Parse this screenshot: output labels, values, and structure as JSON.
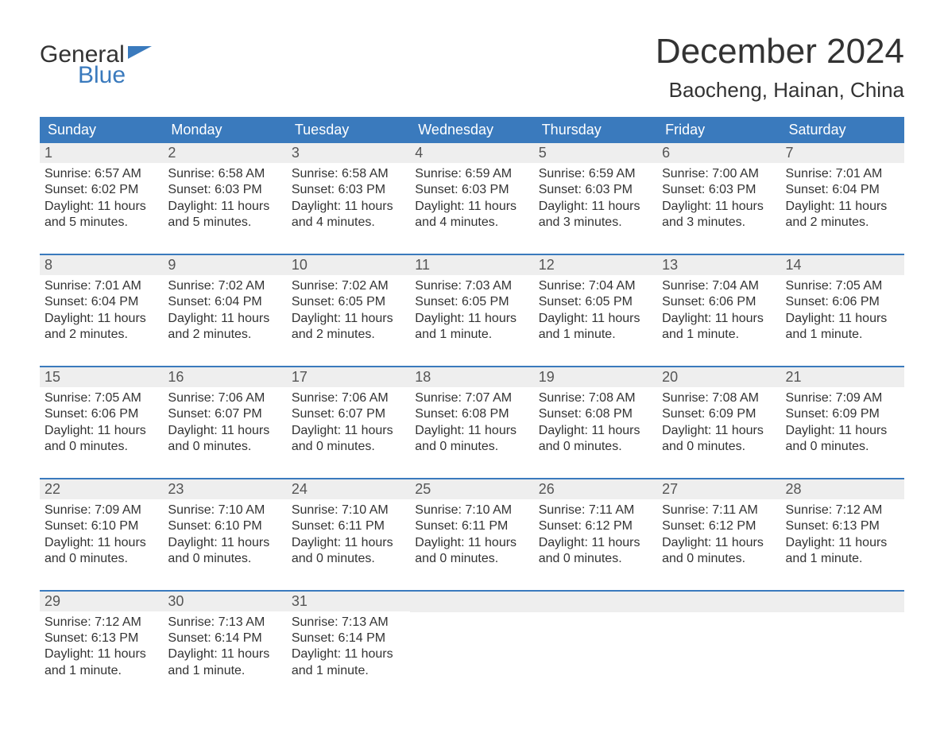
{
  "colors": {
    "brand_blue": "#3a7abd",
    "header_bg": "#3a7abd",
    "header_text": "#ffffff",
    "daynum_bg": "#eeeeee",
    "daynum_text": "#555555",
    "body_text": "#333333",
    "page_bg": "#ffffff",
    "week_divider": "#3a7abd"
  },
  "typography": {
    "title_fontsize_pt": 33,
    "location_fontsize_pt": 20,
    "dow_fontsize_pt": 14,
    "daynum_fontsize_pt": 14,
    "body_fontsize_pt": 12,
    "font_family": "Arial"
  },
  "logo": {
    "word1": "General",
    "word2": "Blue"
  },
  "title": "December 2024",
  "location": "Baocheng, Hainan, China",
  "daysOfWeek": [
    "Sunday",
    "Monday",
    "Tuesday",
    "Wednesday",
    "Thursday",
    "Friday",
    "Saturday"
  ],
  "weeks": [
    [
      {
        "n": "1",
        "sr": "Sunrise: 6:57 AM",
        "ss": "Sunset: 6:02 PM",
        "d1": "Daylight: 11 hours",
        "d2": "and 5 minutes."
      },
      {
        "n": "2",
        "sr": "Sunrise: 6:58 AM",
        "ss": "Sunset: 6:03 PM",
        "d1": "Daylight: 11 hours",
        "d2": "and 5 minutes."
      },
      {
        "n": "3",
        "sr": "Sunrise: 6:58 AM",
        "ss": "Sunset: 6:03 PM",
        "d1": "Daylight: 11 hours",
        "d2": "and 4 minutes."
      },
      {
        "n": "4",
        "sr": "Sunrise: 6:59 AM",
        "ss": "Sunset: 6:03 PM",
        "d1": "Daylight: 11 hours",
        "d2": "and 4 minutes."
      },
      {
        "n": "5",
        "sr": "Sunrise: 6:59 AM",
        "ss": "Sunset: 6:03 PM",
        "d1": "Daylight: 11 hours",
        "d2": "and 3 minutes."
      },
      {
        "n": "6",
        "sr": "Sunrise: 7:00 AM",
        "ss": "Sunset: 6:03 PM",
        "d1": "Daylight: 11 hours",
        "d2": "and 3 minutes."
      },
      {
        "n": "7",
        "sr": "Sunrise: 7:01 AM",
        "ss": "Sunset: 6:04 PM",
        "d1": "Daylight: 11 hours",
        "d2": "and 2 minutes."
      }
    ],
    [
      {
        "n": "8",
        "sr": "Sunrise: 7:01 AM",
        "ss": "Sunset: 6:04 PM",
        "d1": "Daylight: 11 hours",
        "d2": "and 2 minutes."
      },
      {
        "n": "9",
        "sr": "Sunrise: 7:02 AM",
        "ss": "Sunset: 6:04 PM",
        "d1": "Daylight: 11 hours",
        "d2": "and 2 minutes."
      },
      {
        "n": "10",
        "sr": "Sunrise: 7:02 AM",
        "ss": "Sunset: 6:05 PM",
        "d1": "Daylight: 11 hours",
        "d2": "and 2 minutes."
      },
      {
        "n": "11",
        "sr": "Sunrise: 7:03 AM",
        "ss": "Sunset: 6:05 PM",
        "d1": "Daylight: 11 hours",
        "d2": "and 1 minute."
      },
      {
        "n": "12",
        "sr": "Sunrise: 7:04 AM",
        "ss": "Sunset: 6:05 PM",
        "d1": "Daylight: 11 hours",
        "d2": "and 1 minute."
      },
      {
        "n": "13",
        "sr": "Sunrise: 7:04 AM",
        "ss": "Sunset: 6:06 PM",
        "d1": "Daylight: 11 hours",
        "d2": "and 1 minute."
      },
      {
        "n": "14",
        "sr": "Sunrise: 7:05 AM",
        "ss": "Sunset: 6:06 PM",
        "d1": "Daylight: 11 hours",
        "d2": "and 1 minute."
      }
    ],
    [
      {
        "n": "15",
        "sr": "Sunrise: 7:05 AM",
        "ss": "Sunset: 6:06 PM",
        "d1": "Daylight: 11 hours",
        "d2": "and 0 minutes."
      },
      {
        "n": "16",
        "sr": "Sunrise: 7:06 AM",
        "ss": "Sunset: 6:07 PM",
        "d1": "Daylight: 11 hours",
        "d2": "and 0 minutes."
      },
      {
        "n": "17",
        "sr": "Sunrise: 7:06 AM",
        "ss": "Sunset: 6:07 PM",
        "d1": "Daylight: 11 hours",
        "d2": "and 0 minutes."
      },
      {
        "n": "18",
        "sr": "Sunrise: 7:07 AM",
        "ss": "Sunset: 6:08 PM",
        "d1": "Daylight: 11 hours",
        "d2": "and 0 minutes."
      },
      {
        "n": "19",
        "sr": "Sunrise: 7:08 AM",
        "ss": "Sunset: 6:08 PM",
        "d1": "Daylight: 11 hours",
        "d2": "and 0 minutes."
      },
      {
        "n": "20",
        "sr": "Sunrise: 7:08 AM",
        "ss": "Sunset: 6:09 PM",
        "d1": "Daylight: 11 hours",
        "d2": "and 0 minutes."
      },
      {
        "n": "21",
        "sr": "Sunrise: 7:09 AM",
        "ss": "Sunset: 6:09 PM",
        "d1": "Daylight: 11 hours",
        "d2": "and 0 minutes."
      }
    ],
    [
      {
        "n": "22",
        "sr": "Sunrise: 7:09 AM",
        "ss": "Sunset: 6:10 PM",
        "d1": "Daylight: 11 hours",
        "d2": "and 0 minutes."
      },
      {
        "n": "23",
        "sr": "Sunrise: 7:10 AM",
        "ss": "Sunset: 6:10 PM",
        "d1": "Daylight: 11 hours",
        "d2": "and 0 minutes."
      },
      {
        "n": "24",
        "sr": "Sunrise: 7:10 AM",
        "ss": "Sunset: 6:11 PM",
        "d1": "Daylight: 11 hours",
        "d2": "and 0 minutes."
      },
      {
        "n": "25",
        "sr": "Sunrise: 7:10 AM",
        "ss": "Sunset: 6:11 PM",
        "d1": "Daylight: 11 hours",
        "d2": "and 0 minutes."
      },
      {
        "n": "26",
        "sr": "Sunrise: 7:11 AM",
        "ss": "Sunset: 6:12 PM",
        "d1": "Daylight: 11 hours",
        "d2": "and 0 minutes."
      },
      {
        "n": "27",
        "sr": "Sunrise: 7:11 AM",
        "ss": "Sunset: 6:12 PM",
        "d1": "Daylight: 11 hours",
        "d2": "and 0 minutes."
      },
      {
        "n": "28",
        "sr": "Sunrise: 7:12 AM",
        "ss": "Sunset: 6:13 PM",
        "d1": "Daylight: 11 hours",
        "d2": "and 1 minute."
      }
    ],
    [
      {
        "n": "29",
        "sr": "Sunrise: 7:12 AM",
        "ss": "Sunset: 6:13 PM",
        "d1": "Daylight: 11 hours",
        "d2": "and 1 minute."
      },
      {
        "n": "30",
        "sr": "Sunrise: 7:13 AM",
        "ss": "Sunset: 6:14 PM",
        "d1": "Daylight: 11 hours",
        "d2": "and 1 minute."
      },
      {
        "n": "31",
        "sr": "Sunrise: 7:13 AM",
        "ss": "Sunset: 6:14 PM",
        "d1": "Daylight: 11 hours",
        "d2": "and 1 minute."
      },
      null,
      null,
      null,
      null
    ]
  ]
}
